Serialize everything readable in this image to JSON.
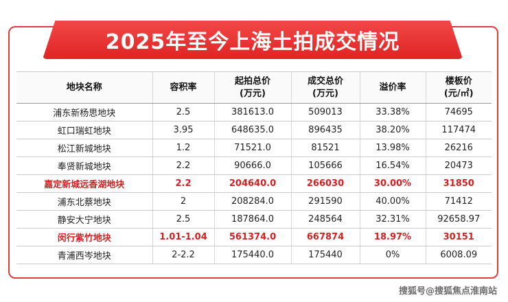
{
  "title": "2025年至今上海土拍成交情况",
  "headers": [
    {
      "line1": "地块名称",
      "line2": ""
    },
    {
      "line1": "容积率",
      "line2": ""
    },
    {
      "line1": "起拍总价",
      "line2": "(万元)"
    },
    {
      "line1": "成交总价",
      "line2": "(万元)"
    },
    {
      "line1": "溢价率",
      "line2": ""
    },
    {
      "line1": "楼板价",
      "line2": "(元/㎡)"
    }
  ],
  "rows": [
    {
      "name": "浦东新杨思地块",
      "far": "2.5",
      "start": "381613.0",
      "deal": "509013",
      "premium": "33.38%",
      "floor": "74695",
      "highlight": false
    },
    {
      "name": "虹口瑞虹地块",
      "far": "3.95",
      "start": "648635.0",
      "deal": "896435",
      "premium": "38.20%",
      "floor": "117474",
      "highlight": false
    },
    {
      "name": "松江新城地块",
      "far": "1.2",
      "start": "71521.0",
      "deal": "81521",
      "premium": "13.98%",
      "floor": "26216",
      "highlight": false
    },
    {
      "name": "奉贤新城地块",
      "far": "2.2",
      "start": "90666.0",
      "deal": "105666",
      "premium": "16.54%",
      "floor": "20473",
      "highlight": false
    },
    {
      "name": "嘉定新城远香湖地块",
      "far": "2.2",
      "start": "204640.0",
      "deal": "266030",
      "premium": "30.00%",
      "floor": "31850",
      "highlight": true
    },
    {
      "name": "浦东北蔡地块",
      "far": "2",
      "start": "208284.0",
      "deal": "291590",
      "premium": "40.00%",
      "floor": "71412",
      "highlight": false
    },
    {
      "name": "静安大宁地块",
      "far": "2.5",
      "start": "187864.0",
      "deal": "248564",
      "premium": "32.31%",
      "floor": "92658.97",
      "highlight": false
    },
    {
      "name": "闵行紫竹地块",
      "far": "1.01-1.04",
      "start": "561374.0",
      "deal": "667874",
      "premium": "18.97%",
      "floor": "30151",
      "highlight": true
    },
    {
      "name": "青浦西岑地块",
      "far": "2-2.2",
      "start": "175440.0",
      "deal": "175440",
      "premium": "0%",
      "floor": "6008.09",
      "highlight": false
    }
  ],
  "watermark": "搜狐号@搜狐焦点淮南站",
  "colors": {
    "banner": "#e02424",
    "frame": "#e23b3b",
    "highlight_text": "#d42020"
  }
}
